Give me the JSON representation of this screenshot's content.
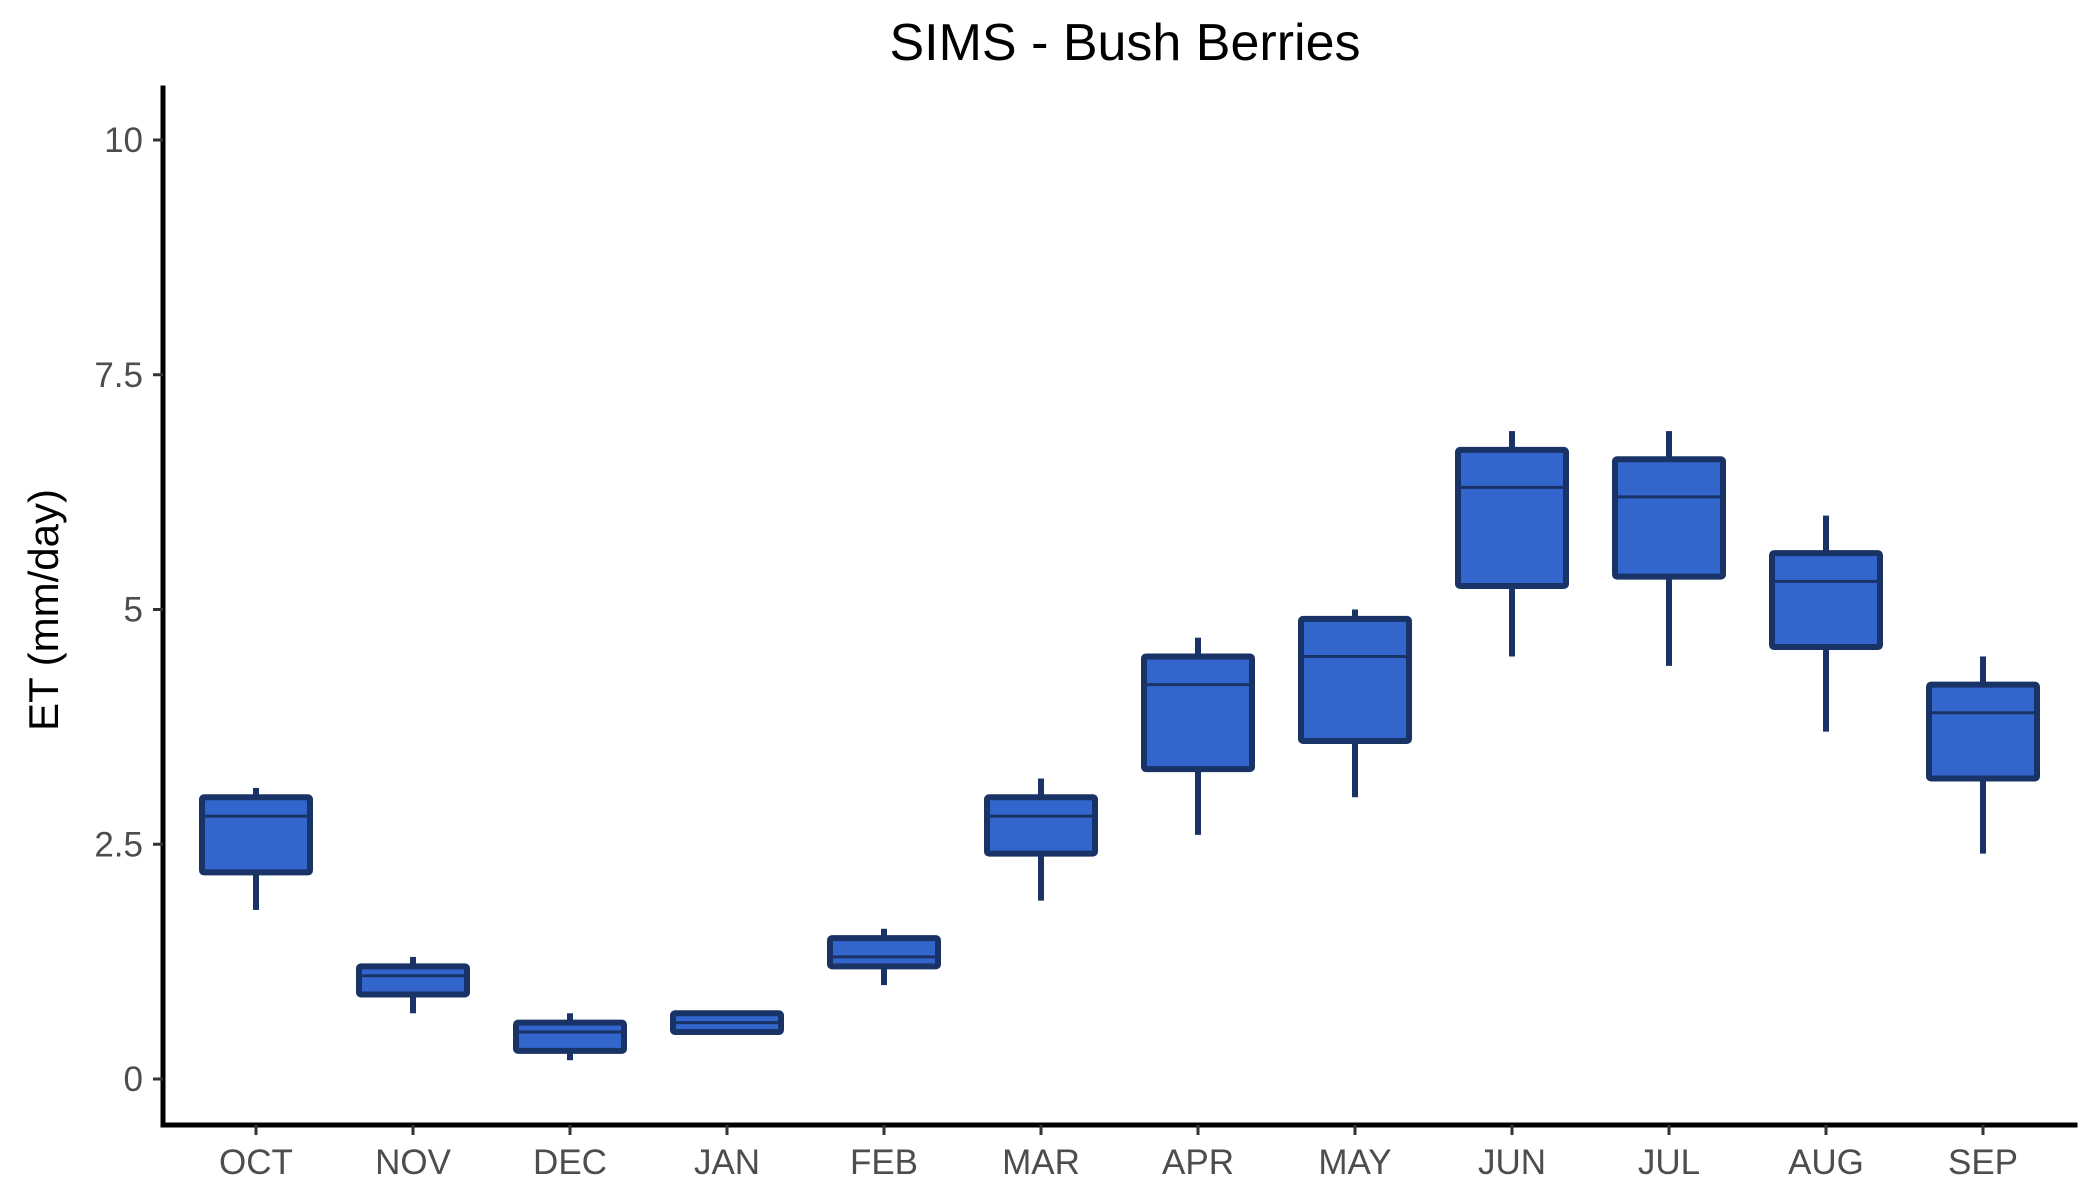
{
  "chart_data": {
    "type": "boxplot",
    "title": "SIMS - Bush Berries",
    "xlabel": "",
    "ylabel": "ET (mm/day)",
    "ylim": [
      -0.5,
      10.5
    ],
    "yticks": [
      0,
      2.5,
      5,
      7.5,
      10
    ],
    "ytick_labels": [
      "0",
      "2.5",
      "5",
      "7.5",
      "10"
    ],
    "grid": false,
    "legend": "none",
    "box_fill": "#3366cc",
    "box_stroke": "#1a3366",
    "categories": [
      "OCT",
      "NOV",
      "DEC",
      "JAN",
      "FEB",
      "MAR",
      "APR",
      "MAY",
      "JUN",
      "JUL",
      "AUG",
      "SEP"
    ],
    "boxes": [
      {
        "category": "OCT",
        "whisker_low": 1.8,
        "q1": 2.2,
        "median": 2.8,
        "q3": 3.0,
        "whisker_high": 3.1
      },
      {
        "category": "NOV",
        "whisker_low": 0.7,
        "q1": 0.9,
        "median": 1.1,
        "q3": 1.2,
        "whisker_high": 1.3
      },
      {
        "category": "DEC",
        "whisker_low": 0.2,
        "q1": 0.3,
        "median": 0.5,
        "q3": 0.6,
        "whisker_high": 0.7
      },
      {
        "category": "JAN",
        "whisker_low": 0.5,
        "q1": 0.5,
        "median": 0.6,
        "q3": 0.7,
        "whisker_high": 0.7
      },
      {
        "category": "FEB",
        "whisker_low": 1.0,
        "q1": 1.2,
        "median": 1.3,
        "q3": 1.5,
        "whisker_high": 1.6
      },
      {
        "category": "MAR",
        "whisker_low": 1.9,
        "q1": 2.4,
        "median": 2.8,
        "q3": 3.0,
        "whisker_high": 3.2
      },
      {
        "category": "APR",
        "whisker_low": 2.6,
        "q1": 3.3,
        "median": 4.2,
        "q3": 4.5,
        "whisker_high": 4.7
      },
      {
        "category": "MAY",
        "whisker_low": 3.0,
        "q1": 3.6,
        "median": 4.5,
        "q3": 4.9,
        "whisker_high": 5.0
      },
      {
        "category": "JUN",
        "whisker_low": 4.5,
        "q1": 5.25,
        "median": 6.3,
        "q3": 6.7,
        "whisker_high": 6.9
      },
      {
        "category": "JUL",
        "whisker_low": 4.4,
        "q1": 5.35,
        "median": 6.2,
        "q3": 6.6,
        "whisker_high": 6.9
      },
      {
        "category": "AUG",
        "whisker_low": 3.7,
        "q1": 4.6,
        "median": 5.3,
        "q3": 5.6,
        "whisker_high": 6.0
      },
      {
        "category": "SEP",
        "whisker_low": 2.4,
        "q1": 3.2,
        "median": 3.9,
        "q3": 4.2,
        "whisker_high": 4.5
      }
    ]
  }
}
